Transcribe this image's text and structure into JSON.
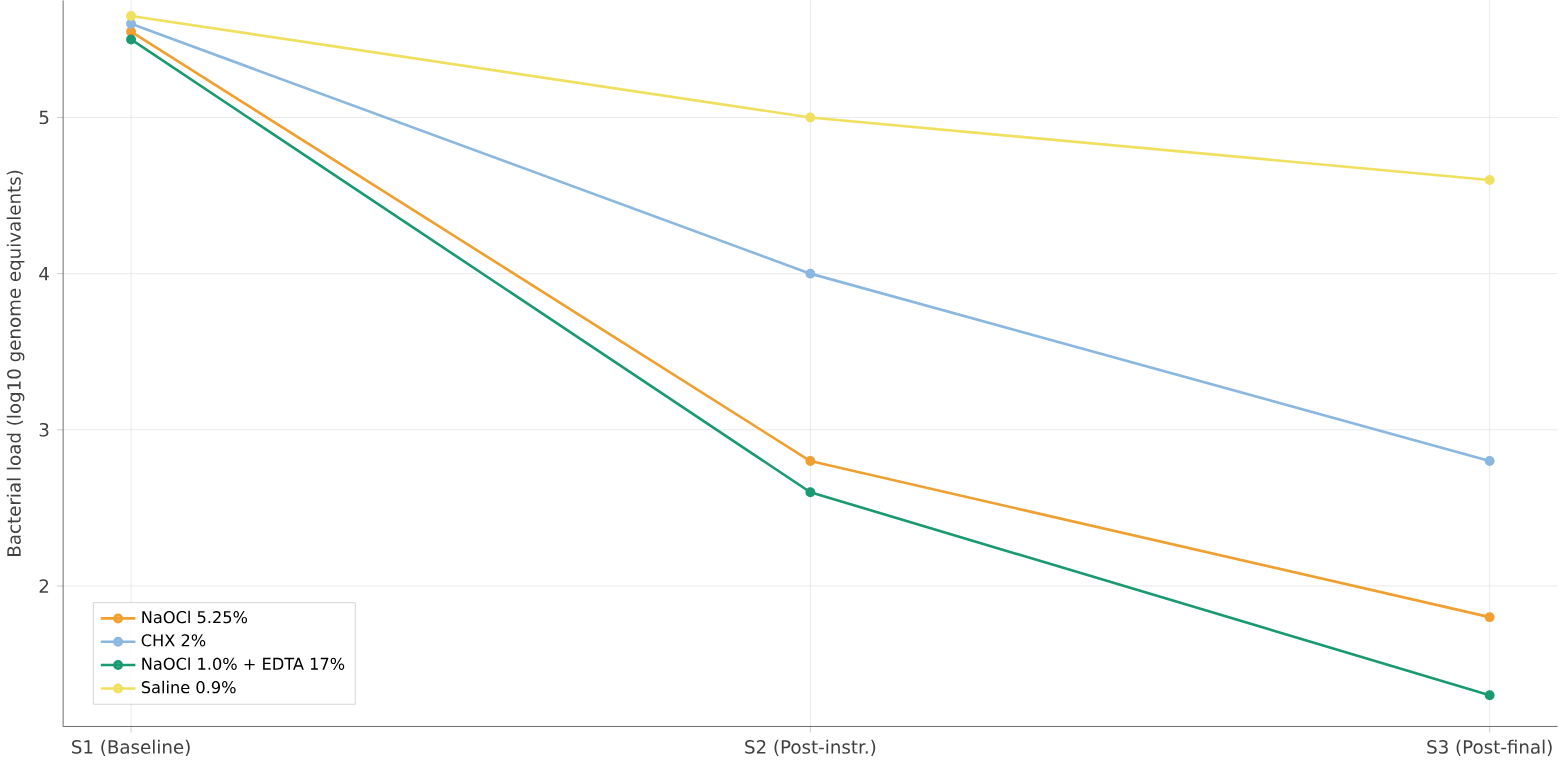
{
  "chart_data": {
    "type": "line",
    "ylabel": "Bacterial load (log10 genome equivalents)",
    "categories": [
      "S1 (Baseline)",
      "S2 (Post-instr.)",
      "S3 (Post-final)"
    ],
    "series": [
      {
        "name": "NaOCl 5.25%",
        "color": "#f0a030",
        "values": [
          5.55,
          2.8,
          1.8
        ]
      },
      {
        "name": "CHX 2%",
        "color": "#8ab8e0",
        "values": [
          5.6,
          4.0,
          2.8
        ]
      },
      {
        "name": "NaOCl 1.0% + EDTA 17%",
        "color": "#1a9a70",
        "values": [
          5.5,
          2.6,
          1.3
        ]
      },
      {
        "name": "Saline 0.9%",
        "color": "#f0e060",
        "values": [
          5.65,
          5.0,
          4.6
        ]
      }
    ],
    "ylim": [
      1.1,
      5.75
    ],
    "yticks": [
      2,
      3,
      4,
      5
    ],
    "grid": true,
    "legend": "bottom left",
    "marker": "circle",
    "line_style": "solid"
  }
}
